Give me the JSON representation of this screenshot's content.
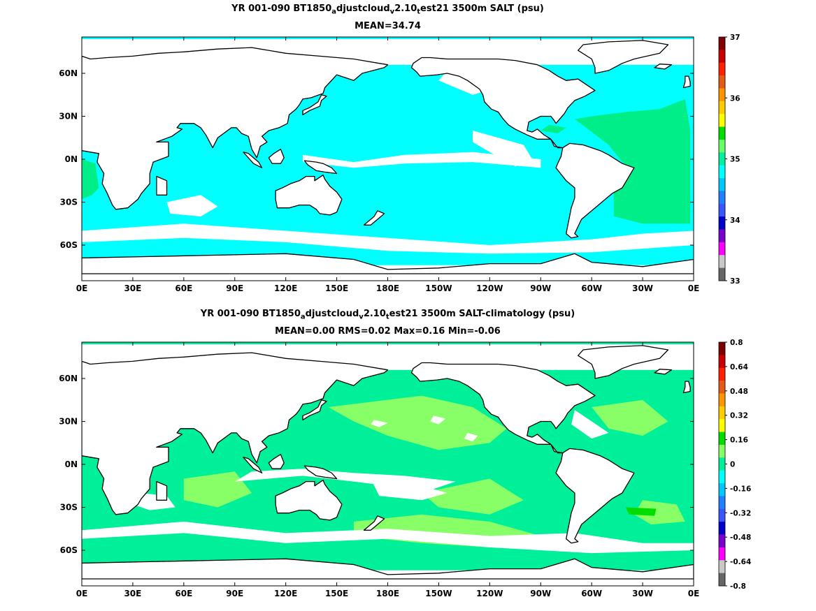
{
  "panels": [
    {
      "title_parts": [
        "YR 001-090 BT1850",
        "a",
        "djustcloud",
        "v",
        "2.10",
        "t",
        "est21 3500m SALT (psu)"
      ],
      "subtitle": "MEAN=34.74",
      "colorbar_labels": [
        "37",
        "36",
        "35",
        "34",
        "33"
      ],
      "colorbar_colors": [
        "#7f0000",
        "#c80000",
        "#ff2000",
        "#e35b14",
        "#ff9400",
        "#ffcc00",
        "#ffff00",
        "#00dd00",
        "#66ff66",
        "#00f0a0",
        "#00ffff",
        "#00c8ff",
        "#2080ff",
        "#3a56ff",
        "#0000cc",
        "#7a00cc",
        "#ff00ff",
        "#c8c8c8",
        "#666666"
      ],
      "background_color": "#00ffff",
      "patch_color": "#00ee88"
    },
    {
      "title_parts": [
        "YR 001-090 BT1850",
        "a",
        "djustcloud",
        "v",
        "2.10",
        "t",
        "est21 3500m SALT-climatology (psu)"
      ],
      "subtitle": "MEAN=0.00   RMS=0.02   Max=0.16   Min=-0.06",
      "colorbar_labels": [
        "0.8",
        "0.64",
        "0.48",
        "0.32",
        "0.16",
        "0",
        "-0.16",
        "-0.32",
        "-0.48",
        "-0.64",
        "-0.8"
      ],
      "colorbar_colors": [
        "#7f0000",
        "#c80000",
        "#ff2000",
        "#e35b14",
        "#ff9400",
        "#ffcc00",
        "#ffff00",
        "#00dd00",
        "#88ff66",
        "#00f09a",
        "#00ffff",
        "#00c8ff",
        "#2080ff",
        "#3a56ff",
        "#0000cc",
        "#7a00cc",
        "#ff00ff",
        "#c8c8c8",
        "#666666"
      ],
      "background_color": "#00f09a",
      "patch_color": "#88ff66"
    }
  ],
  "map": {
    "lon_ticks": [
      "0E",
      "30E",
      "60E",
      "90E",
      "120E",
      "150E",
      "180E",
      "150W",
      "120W",
      "90W",
      "60W",
      "30W",
      "0E"
    ],
    "lat_ticks": [
      "60N",
      "30N",
      "0N",
      "30S",
      "60S"
    ],
    "coastline_color": "#000000"
  }
}
